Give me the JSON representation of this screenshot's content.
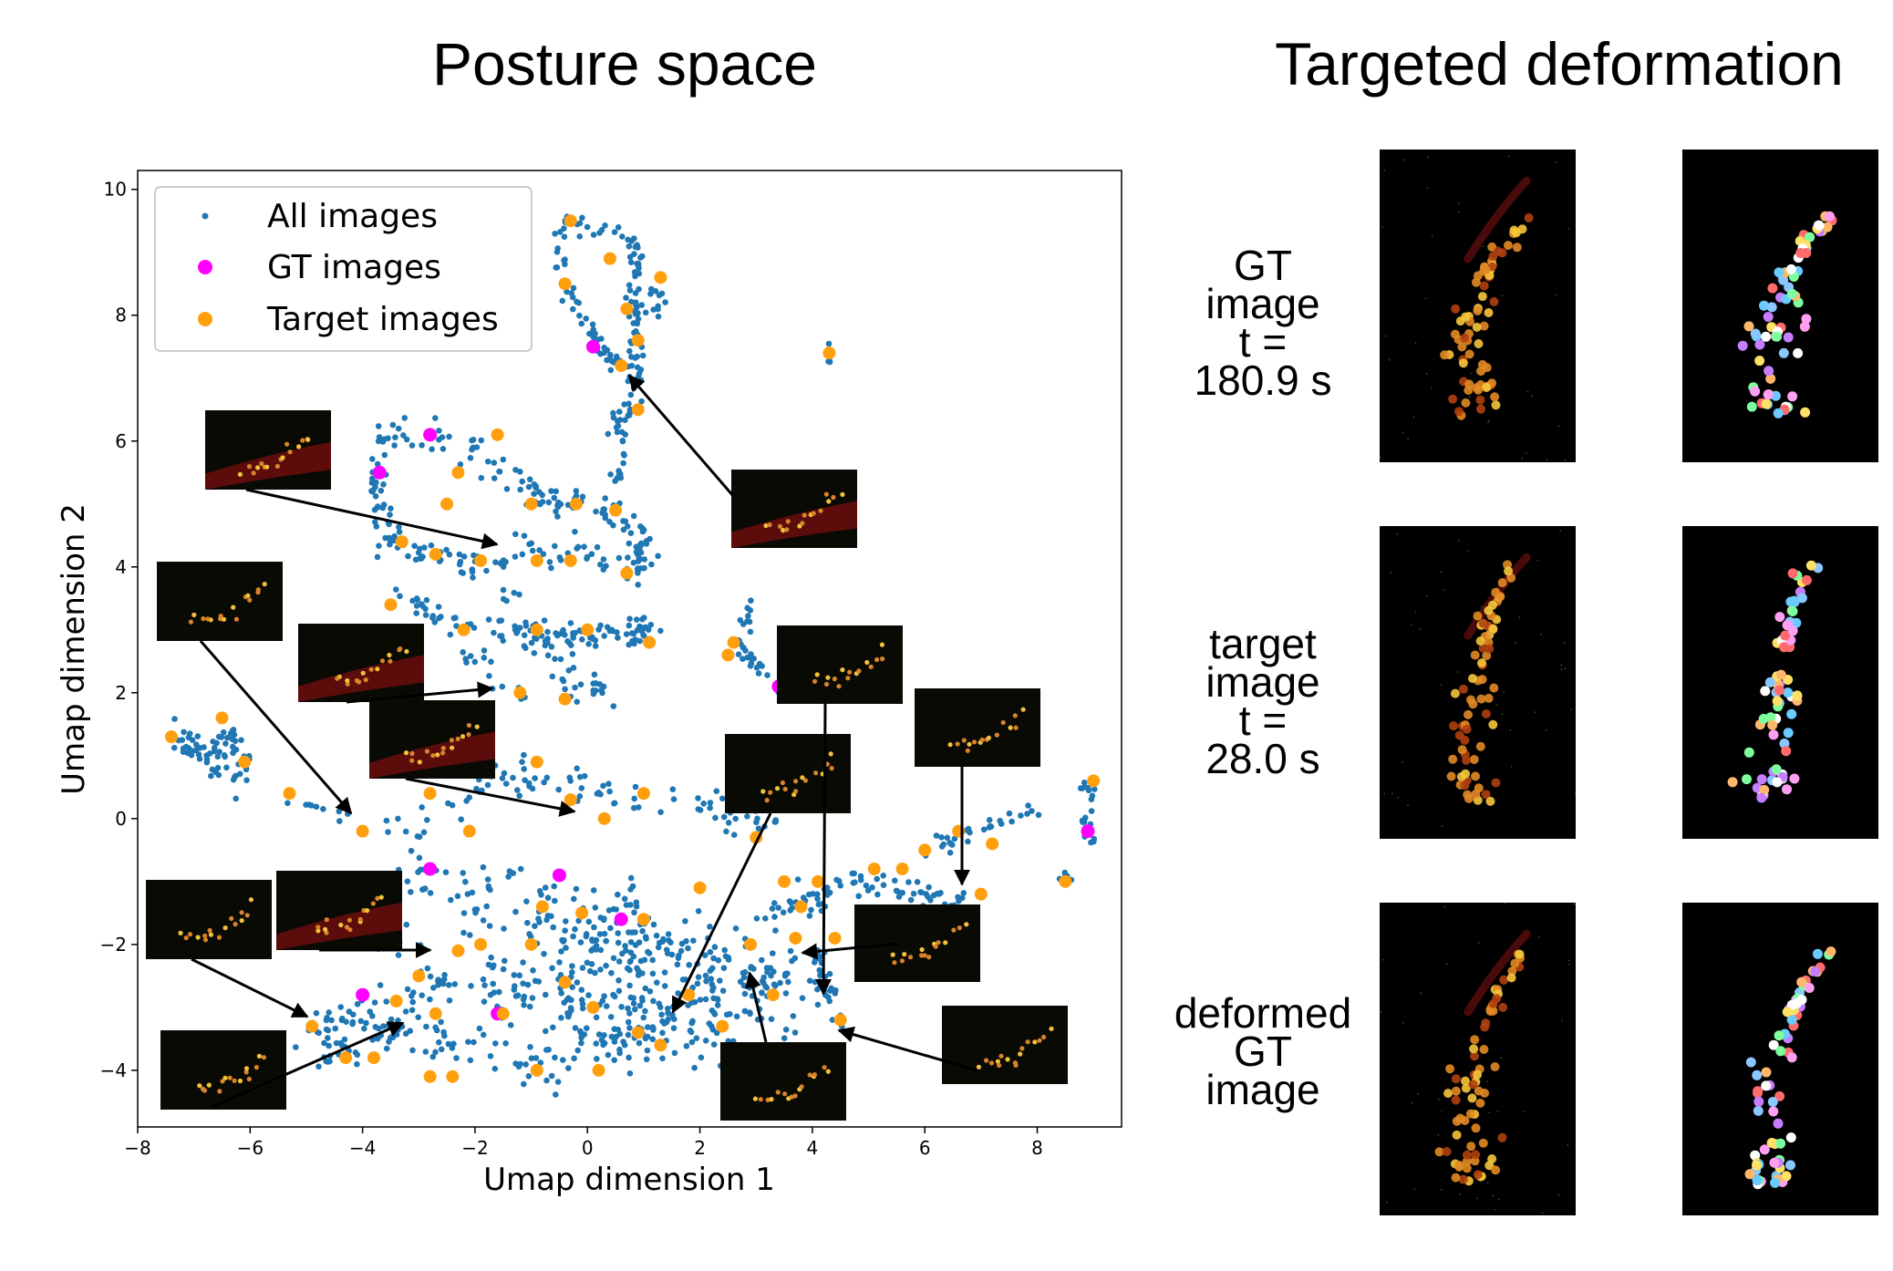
{
  "headings": {
    "left": "Posture space",
    "right": "Targeted deformation"
  },
  "chart_data": {
    "type": "scatter",
    "xlabel": "Umap dimension 1",
    "ylabel": "Umap dimension 2",
    "xlim": [
      -8,
      9.5
    ],
    "ylim": [
      -4.9,
      10.3
    ],
    "xticks": [
      -8,
      -6,
      -4,
      -2,
      0,
      2,
      4,
      6,
      8
    ],
    "yticks": [
      -4,
      -2,
      0,
      2,
      4,
      6,
      8,
      10
    ],
    "xtick_labels": [
      "−8",
      "−6",
      "−4",
      "−2",
      "0",
      "2",
      "4",
      "6",
      "8"
    ],
    "ytick_labels": [
      "−4",
      "−2",
      "0",
      "2",
      "4",
      "6",
      "8",
      "10"
    ],
    "legend_position": "upper-left",
    "series": [
      {
        "name": "All images",
        "color": "#1f77b4",
        "marker_size": "small"
      },
      {
        "name": "GT images",
        "color": "#ff00ff",
        "marker_size": "large",
        "points": [
          [
            0.1,
            7.5
          ],
          [
            -2.8,
            6.1
          ],
          [
            -3.7,
            5.5
          ],
          [
            3.4,
            2.1
          ],
          [
            -2.8,
            -0.8
          ],
          [
            -0.5,
            -0.9
          ],
          [
            0.6,
            -1.6
          ],
          [
            -4.0,
            -2.8
          ],
          [
            -1.6,
            -3.1
          ],
          [
            8.9,
            -0.2
          ]
        ]
      },
      {
        "name": "Target images",
        "color": "#ff9f0e",
        "marker_size": "large",
        "points": [
          [
            -0.3,
            9.5
          ],
          [
            0.4,
            8.9
          ],
          [
            1.3,
            8.6
          ],
          [
            -0.4,
            8.5
          ],
          [
            0.7,
            8.1
          ],
          [
            0.9,
            7.6
          ],
          [
            4.3,
            7.4
          ],
          [
            0.6,
            7.2
          ],
          [
            0.9,
            6.5
          ],
          [
            -1.6,
            6.1
          ],
          [
            -2.3,
            5.5
          ],
          [
            -2.5,
            5.0
          ],
          [
            -1.0,
            5.0
          ],
          [
            -0.2,
            5.0
          ],
          [
            0.5,
            4.9
          ],
          [
            -3.3,
            4.4
          ],
          [
            -2.7,
            4.2
          ],
          [
            -1.9,
            4.1
          ],
          [
            -0.9,
            4.1
          ],
          [
            -0.3,
            4.1
          ],
          [
            0.7,
            3.9
          ],
          [
            -3.5,
            3.4
          ],
          [
            -2.2,
            3.0
          ],
          [
            -0.9,
            3.0
          ],
          [
            0.0,
            3.0
          ],
          [
            1.1,
            2.8
          ],
          [
            2.6,
            2.8
          ],
          [
            2.5,
            2.6
          ],
          [
            -1.2,
            2.0
          ],
          [
            -0.4,
            1.9
          ],
          [
            -7.4,
            1.3
          ],
          [
            -6.5,
            1.6
          ],
          [
            -6.1,
            0.9
          ],
          [
            -5.3,
            0.4
          ],
          [
            -0.9,
            0.9
          ],
          [
            -2.8,
            0.4
          ],
          [
            -0.3,
            0.3
          ],
          [
            0.3,
            0.0
          ],
          [
            1.0,
            0.4
          ],
          [
            -4.0,
            -0.2
          ],
          [
            -2.1,
            -0.2
          ],
          [
            3.0,
            -0.3
          ],
          [
            6.0,
            -0.5
          ],
          [
            6.6,
            -0.2
          ],
          [
            7.2,
            -0.4
          ],
          [
            8.5,
            -1.0
          ],
          [
            5.1,
            -0.8
          ],
          [
            5.6,
            -0.8
          ],
          [
            3.5,
            -1.0
          ],
          [
            4.1,
            -1.0
          ],
          [
            2.0,
            -1.1
          ],
          [
            3.8,
            -1.4
          ],
          [
            -0.8,
            -1.4
          ],
          [
            -0.1,
            -1.5
          ],
          [
            1.0,
            -1.6
          ],
          [
            -1.9,
            -2.0
          ],
          [
            -1.0,
            -2.0
          ],
          [
            -2.3,
            -2.1
          ],
          [
            -3.0,
            -2.5
          ],
          [
            -0.4,
            -2.6
          ],
          [
            1.8,
            -2.8
          ],
          [
            -3.4,
            -2.9
          ],
          [
            -2.7,
            -3.1
          ],
          [
            -1.5,
            -3.1
          ],
          [
            0.1,
            -3.0
          ],
          [
            2.4,
            -3.3
          ],
          [
            1.3,
            -3.6
          ],
          [
            0.9,
            -3.4
          ],
          [
            -4.9,
            -3.3
          ],
          [
            -4.3,
            -3.8
          ],
          [
            -3.8,
            -3.8
          ],
          [
            -2.8,
            -4.1
          ],
          [
            -2.4,
            -4.1
          ],
          [
            -0.9,
            -4.0
          ],
          [
            0.2,
            -4.0
          ],
          [
            7.0,
            -1.2
          ],
          [
            4.5,
            -3.2
          ],
          [
            3.7,
            -1.9
          ],
          [
            4.4,
            -1.9
          ],
          [
            3.3,
            -2.8
          ],
          [
            2.9,
            -2.0
          ],
          [
            9.0,
            0.6
          ]
        ]
      }
    ]
  },
  "deformation_rows": [
    {
      "label_lines": [
        "GT",
        "image",
        "t =",
        "180.9 s"
      ]
    },
    {
      "label_lines": [
        "target",
        "image",
        "t =",
        "28.0 s"
      ]
    },
    {
      "label_lines": [
        "deformed",
        "GT",
        "image"
      ]
    }
  ]
}
